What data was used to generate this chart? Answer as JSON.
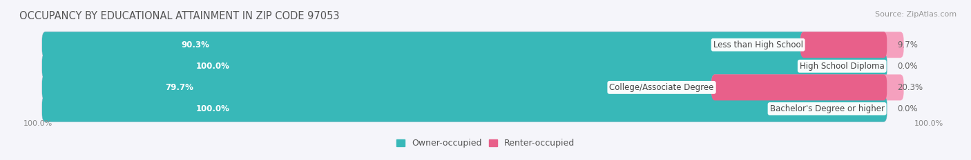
{
  "title": "OCCUPANCY BY EDUCATIONAL ATTAINMENT IN ZIP CODE 97053",
  "source": "Source: ZipAtlas.com",
  "categories": [
    "Less than High School",
    "High School Diploma",
    "College/Associate Degree",
    "Bachelor's Degree or higher"
  ],
  "owner_values": [
    90.3,
    100.0,
    79.7,
    100.0
  ],
  "renter_values": [
    9.7,
    0.0,
    20.3,
    0.0
  ],
  "owner_color": "#38b8b8",
  "renter_color_dark": "#e8608a",
  "renter_color_light": "#f5a0be",
  "bar_bg_color": "#e6e6ee",
  "background_color": "#f5f5fa",
  "bar_outline_color": "#ccccdd",
  "title_fontsize": 10.5,
  "source_fontsize": 8,
  "label_fontsize": 8.5,
  "bar_label_fontsize": 8.5,
  "legend_fontsize": 9,
  "total_bar_width": 100,
  "x_left_label": "100.0%",
  "x_right_label": "100.0%"
}
